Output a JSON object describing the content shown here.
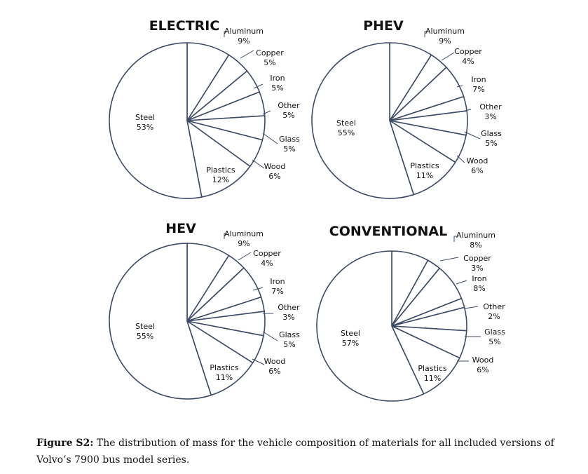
{
  "chart_data": [
    {
      "type": "pie",
      "title": "ELECTRIC",
      "slices": [
        {
          "label": "Aluminum",
          "value": 9,
          "display": "9%"
        },
        {
          "label": "Copper",
          "value": 5,
          "display": "5%"
        },
        {
          "label": "Iron",
          "value": 5,
          "display": "5%"
        },
        {
          "label": "Other",
          "value": 5,
          "display": "5%"
        },
        {
          "label": "Glass",
          "value": 5,
          "display": "5%"
        },
        {
          "label": "Wood",
          "value": 6,
          "display": "6%"
        },
        {
          "label": "Plastics",
          "value": 12,
          "display": "12%"
        },
        {
          "label": "Steel",
          "value": 53,
          "display": "53%"
        }
      ]
    },
    {
      "type": "pie",
      "title": "PHEV",
      "slices": [
        {
          "label": "Aluminum",
          "value": 9,
          "display": "9%"
        },
        {
          "label": "Copper",
          "value": 4,
          "display": "4%"
        },
        {
          "label": "Iron",
          "value": 7,
          "display": "7%"
        },
        {
          "label": "Other",
          "value": 3,
          "display": "3%"
        },
        {
          "label": "Glass",
          "value": 5,
          "display": "5%"
        },
        {
          "label": "Wood",
          "value": 6,
          "display": "6%"
        },
        {
          "label": "Plastics",
          "value": 11,
          "display": "11%"
        },
        {
          "label": "Steel",
          "value": 55,
          "display": "55%"
        }
      ]
    },
    {
      "type": "pie",
      "title": "HEV",
      "slices": [
        {
          "label": "Aluminum",
          "value": 9,
          "display": "9%"
        },
        {
          "label": "Copper",
          "value": 4,
          "display": "4%"
        },
        {
          "label": "Iron",
          "value": 7,
          "display": "7%"
        },
        {
          "label": "Other",
          "value": 3,
          "display": "3%"
        },
        {
          "label": "Glass",
          "value": 5,
          "display": "5%"
        },
        {
          "label": "Wood",
          "value": 6,
          "display": "6%"
        },
        {
          "label": "Plastics",
          "value": 11,
          "display": "11%"
        },
        {
          "label": "Steel",
          "value": 55,
          "display": "55%"
        }
      ]
    },
    {
      "type": "pie",
      "title": "CONVENTIONAL",
      "slices": [
        {
          "label": "Aluminum",
          "value": 8,
          "display": "8%"
        },
        {
          "label": "Copper",
          "value": 3,
          "display": "3%"
        },
        {
          "label": "Iron",
          "value": 8,
          "display": "8%"
        },
        {
          "label": "Other",
          "value": 2,
          "display": "2%"
        },
        {
          "label": "Glass",
          "value": 5,
          "display": "5%"
        },
        {
          "label": "Wood",
          "value": 6,
          "display": "6%"
        },
        {
          "label": "Plastics",
          "value": 11,
          "display": "11%"
        },
        {
          "label": "Steel",
          "value": 57,
          "display": "57%"
        }
      ]
    }
  ],
  "colors": {
    "outline": "#3d4b66",
    "fill": "#ffffff",
    "text": "#111111"
  },
  "caption": {
    "prefix": "Figure S2:",
    "text": " The distribution of mass for the vehicle composition of materials for all included versions of Volvo’s 7900 bus model series."
  }
}
